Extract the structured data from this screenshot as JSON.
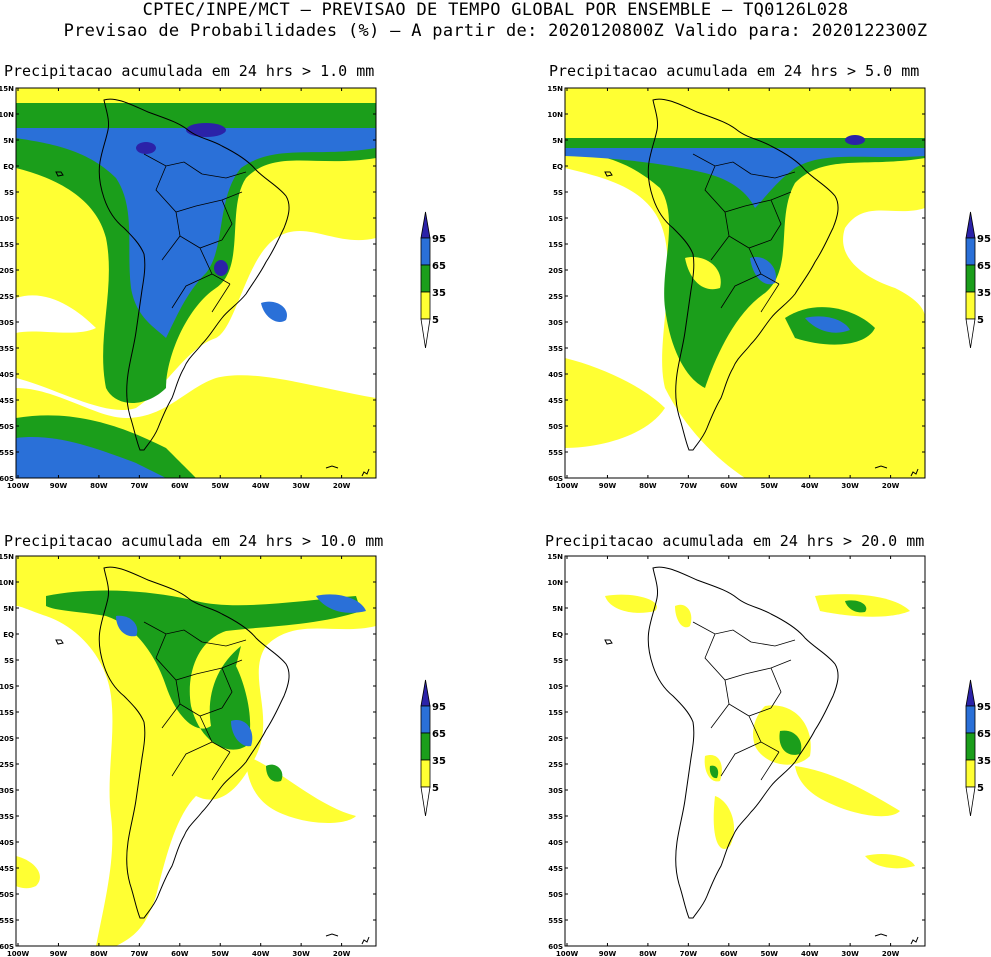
{
  "header": {
    "line1": "CPTEC/INPE/MCT — PREVISAO DE TEMPO GLOBAL POR ENSEMBLE — TQ0126L028",
    "line2": "Previsao de Probabilidades (%) —  A partir de: 2020120800Z  Valido para: 2020122300Z"
  },
  "panels": [
    {
      "title": "Precipitacao acumulada em 24 hrs > 1.0 mm",
      "threshold": "1.0"
    },
    {
      "title": "Precipitacao acumulada em 24 hrs > 5.0 mm",
      "threshold": "5.0"
    },
    {
      "title": "Precipitacao acumulada em 24 hrs > 10.0 mm",
      "threshold": "10.0"
    },
    {
      "title": "Precipitacao acumulada em 24 hrs > 20.0 mm",
      "threshold": "20.0"
    }
  ],
  "lat_labels": [
    "15N",
    "10N",
    "5N",
    "EQ",
    "5S",
    "10S",
    "15S",
    "20S",
    "25S",
    "30S",
    "35S",
    "40S",
    "45S",
    "50S",
    "55S",
    "60S"
  ],
  "lon_labels": [
    "100W",
    "90W",
    "80W",
    "70W",
    "60W",
    "50W",
    "40W",
    "30W",
    "20W"
  ],
  "legend": {
    "levels": [
      "95",
      "65",
      "35",
      "5"
    ],
    "colors": {
      "yellow": "#ffff33",
      "green": "#1b9e1b",
      "blue": "#2a70d8",
      "purple": "#2b22a8"
    }
  }
}
